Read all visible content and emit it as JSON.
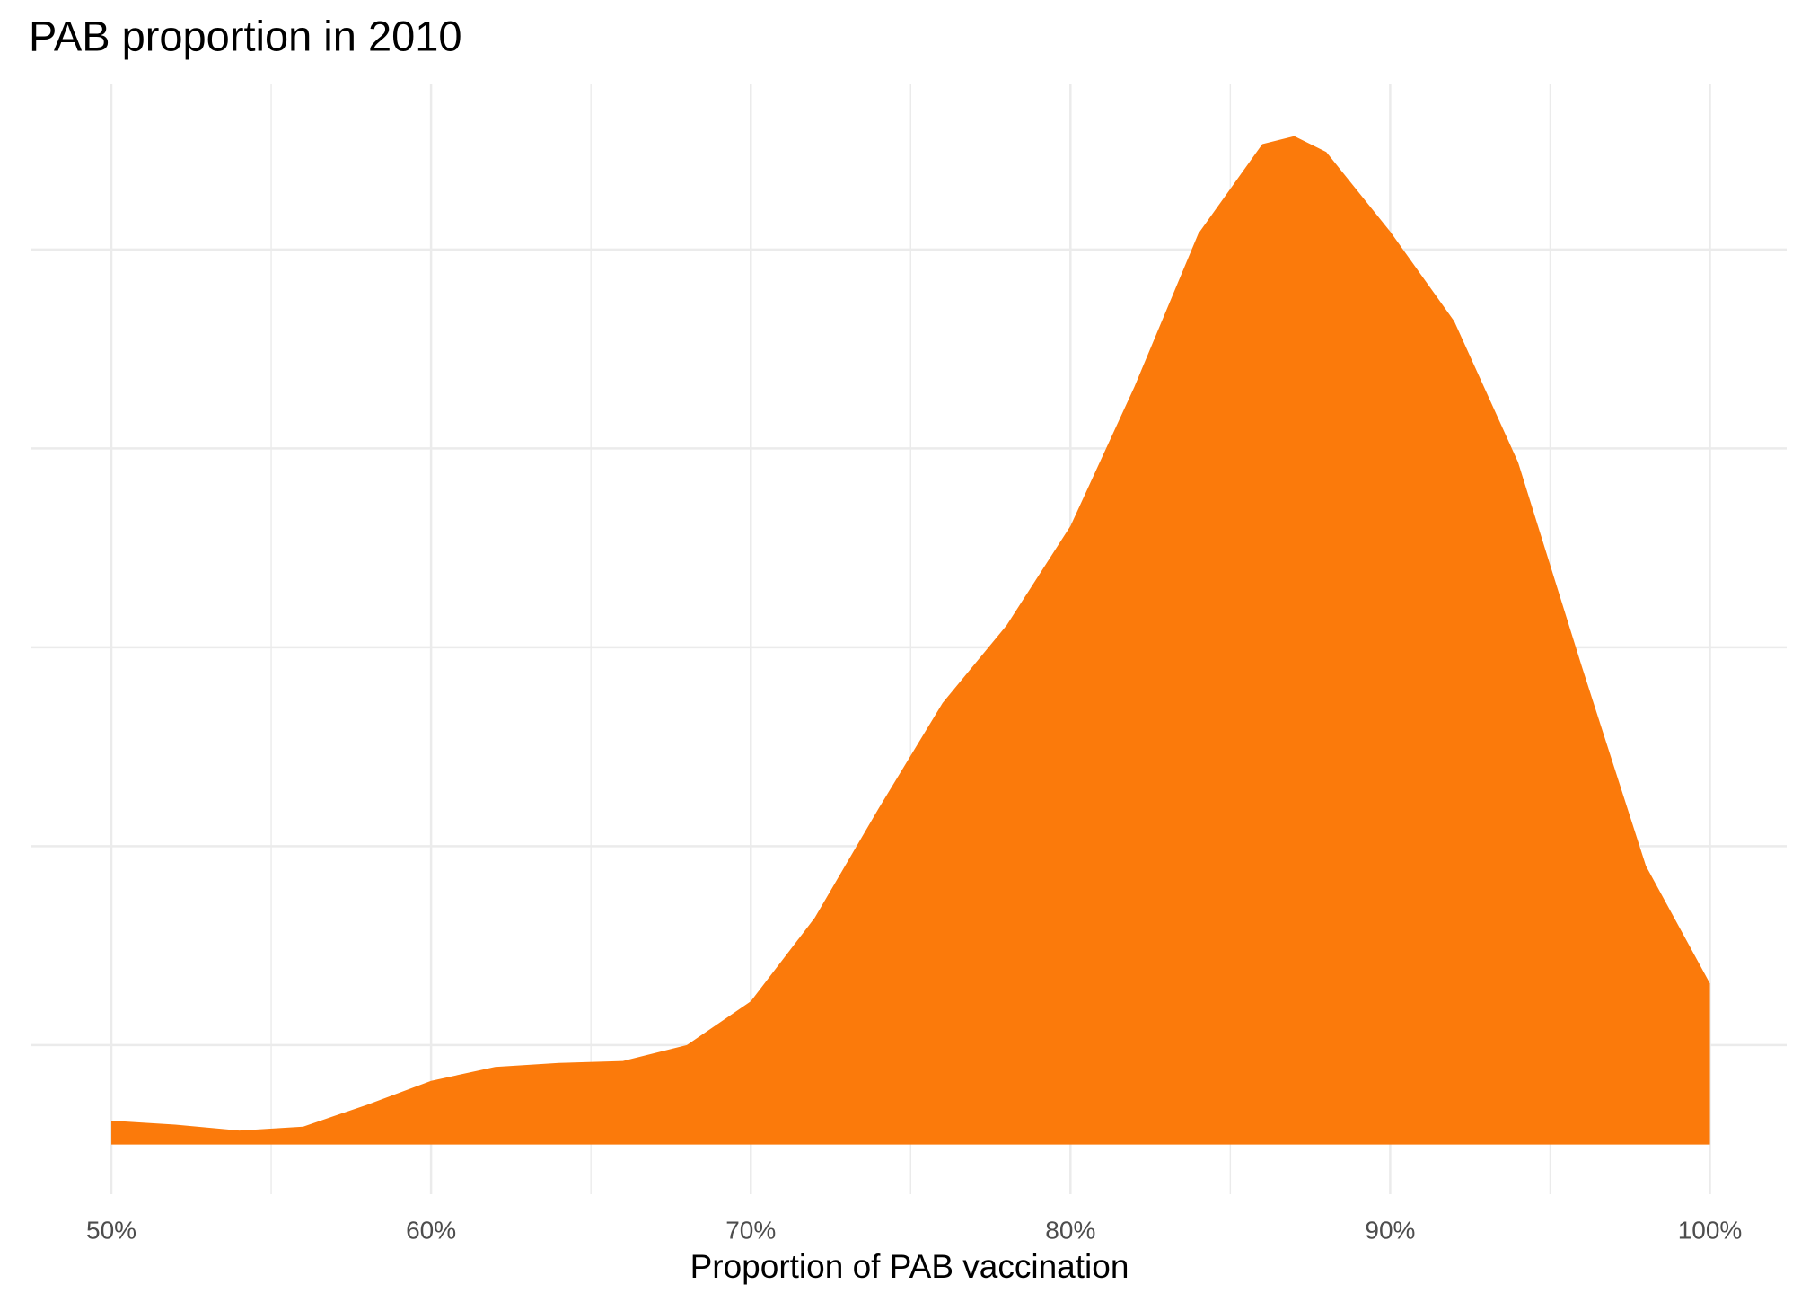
{
  "chart_data": {
    "type": "density",
    "title": "PAB proportion in 2010",
    "x_label": "Proportion of PAB vaccination",
    "color": "#fb7a0b",
    "x": [
      0.5,
      0.52,
      0.54,
      0.56,
      0.58,
      0.6,
      0.62,
      0.64,
      0.66,
      0.68,
      0.7,
      0.72,
      0.74,
      0.76,
      0.78,
      0.8,
      0.82,
      0.84,
      0.86,
      0.87,
      0.88,
      0.9,
      0.92,
      0.94,
      0.96,
      0.98,
      1.0
    ],
    "values": [
      0.12,
      0.1,
      0.07,
      0.09,
      0.2,
      0.32,
      0.39,
      0.41,
      0.42,
      0.5,
      0.72,
      1.14,
      1.69,
      2.22,
      2.61,
      3.11,
      3.81,
      4.58,
      5.03,
      5.07,
      4.99,
      4.59,
      4.14,
      3.43,
      2.4,
      1.4,
      0.81
    ],
    "xlim": [
      0.475,
      1.024
    ],
    "ylim": [
      -0.25,
      5.33
    ],
    "xticks": [
      {
        "value": 0.5,
        "label": "50%"
      },
      {
        "value": 0.6,
        "label": "60%"
      },
      {
        "value": 0.7,
        "label": "70%"
      },
      {
        "value": 0.8,
        "label": "80%"
      },
      {
        "value": 0.9,
        "label": "90%"
      },
      {
        "value": 1.0,
        "label": "100%"
      }
    ],
    "xminorticks": [
      0.55,
      0.65,
      0.75,
      0.85,
      0.95
    ],
    "yticks": [
      0.5,
      1.5,
      2.5,
      3.5,
      4.5
    ],
    "grid": true
  }
}
